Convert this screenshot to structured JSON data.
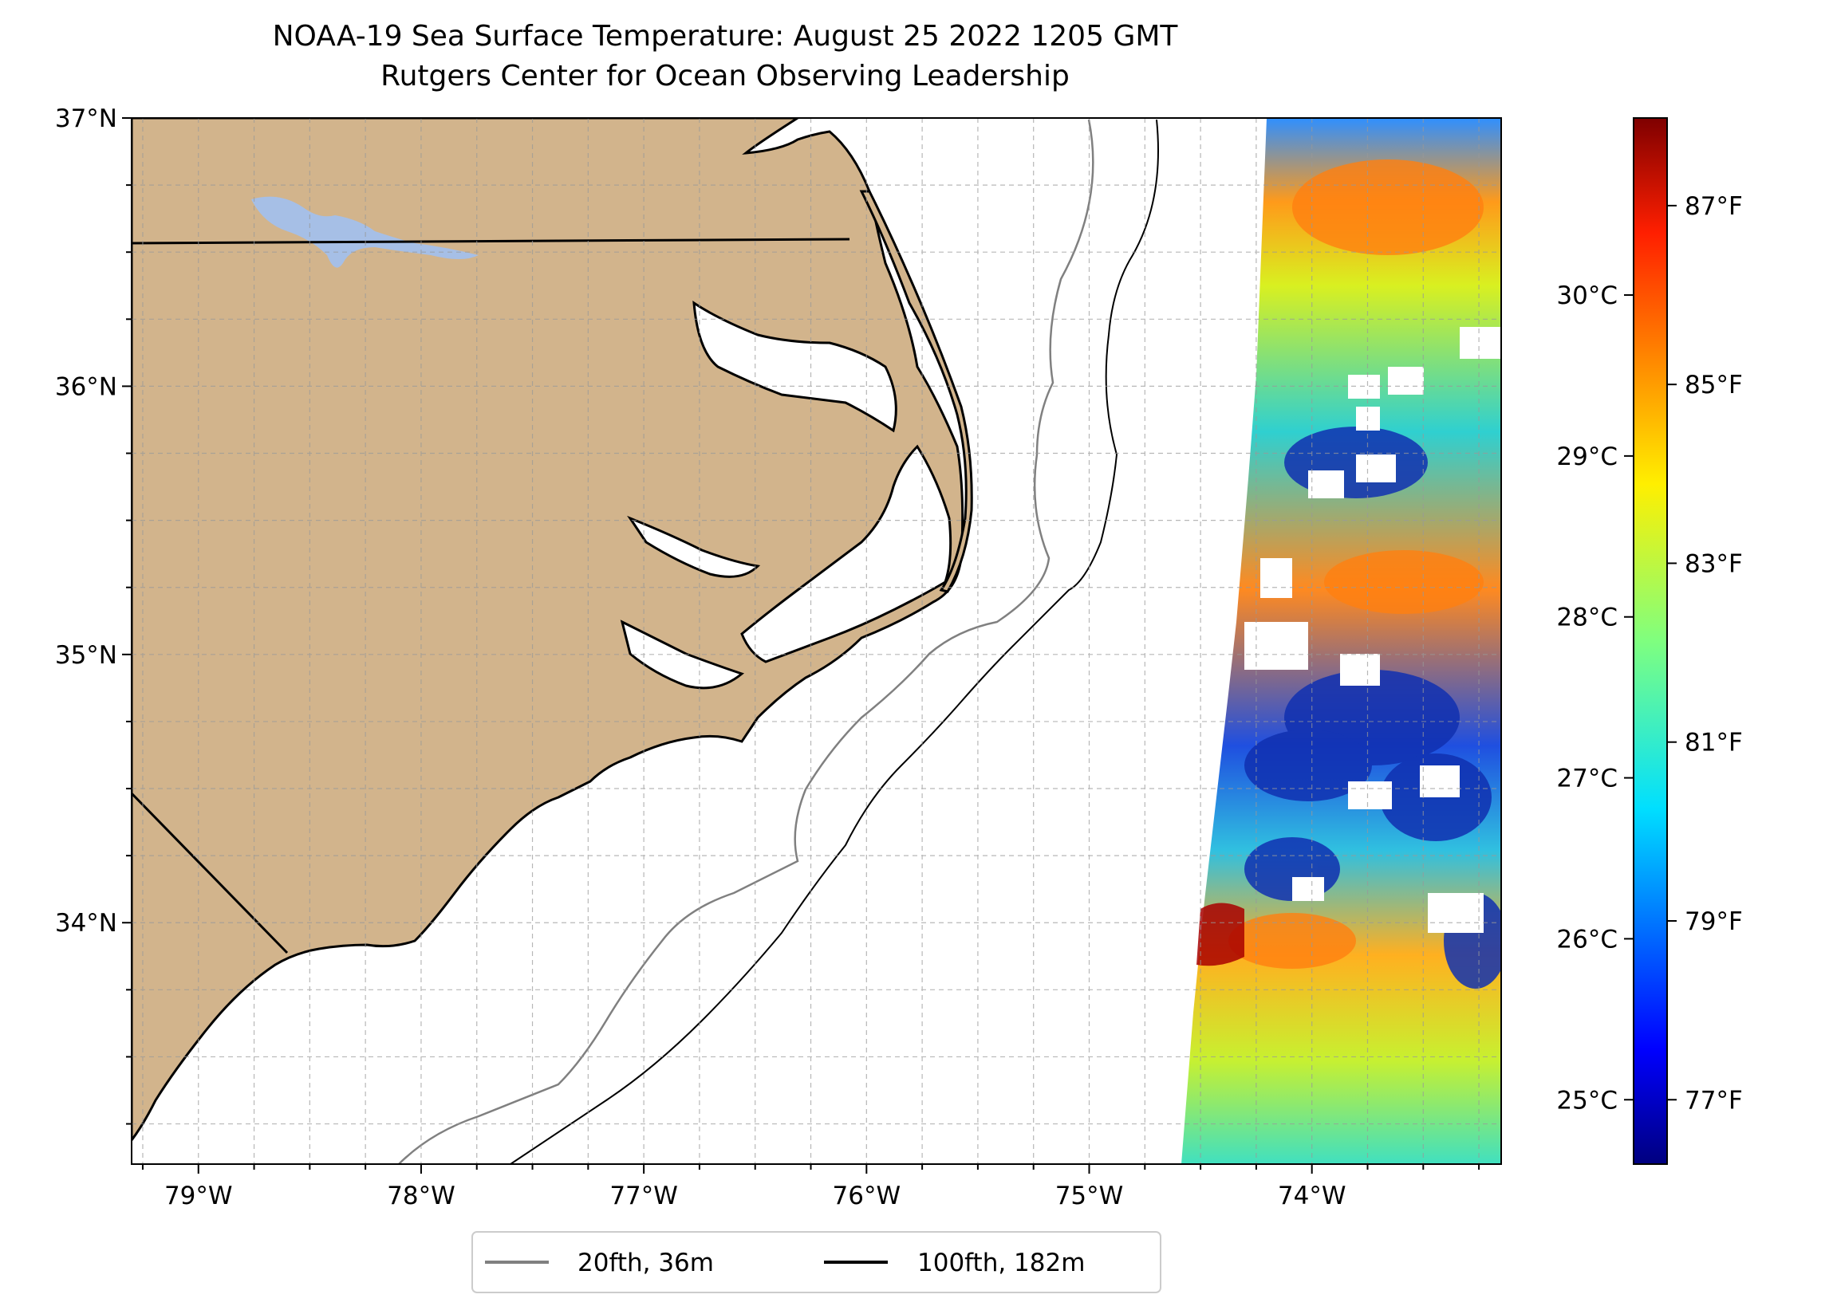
{
  "title": "NOAA-19 Sea Surface Temperature: August 25 2022 1205 GMT",
  "subtitle": "Rutgers Center for Ocean Observing Leadership",
  "map": {
    "lon_range": [
      -79.3,
      -73.15
    ],
    "lat_range": [
      33.1,
      37.0
    ],
    "lon_ticks": [
      {
        "value": -79,
        "label": "79°W"
      },
      {
        "value": -78,
        "label": "78°W"
      },
      {
        "value": -77,
        "label": "77°W"
      },
      {
        "value": -76,
        "label": "76°W"
      },
      {
        "value": -75,
        "label": "75°W"
      },
      {
        "value": -74,
        "label": "74°W"
      }
    ],
    "lat_ticks": [
      {
        "value": 37,
        "label": "37°N"
      },
      {
        "value": 36,
        "label": "36°N"
      },
      {
        "value": 35,
        "label": "35°N"
      },
      {
        "value": 34,
        "label": "34°N"
      }
    ],
    "gridlines": true,
    "land_color": "#d2b48c",
    "lake_color": "#a6bfe6"
  },
  "colorbar": {
    "colormap": "jet",
    "celsius_ticks": [
      {
        "value": 30,
        "label": "30°C"
      },
      {
        "value": 29,
        "label": "29°C"
      },
      {
        "value": 28,
        "label": "28°C"
      },
      {
        "value": 27,
        "label": "27°C"
      },
      {
        "value": 26,
        "label": "26°C"
      },
      {
        "value": 25,
        "label": "25°C"
      }
    ],
    "fahrenheit_ticks": [
      {
        "value": 87,
        "label": "87°F"
      },
      {
        "value": 85,
        "label": "85°F"
      },
      {
        "value": 83,
        "label": "83°F"
      },
      {
        "value": 81,
        "label": "81°F"
      },
      {
        "value": 79,
        "label": "79°F"
      },
      {
        "value": 77,
        "label": "77°F"
      }
    ]
  },
  "legend": {
    "placement": "bottom-center",
    "items": [
      {
        "label": "20fth, 36m",
        "color": "#808080"
      },
      {
        "label": "100fth, 182m",
        "color": "#000000"
      }
    ]
  }
}
